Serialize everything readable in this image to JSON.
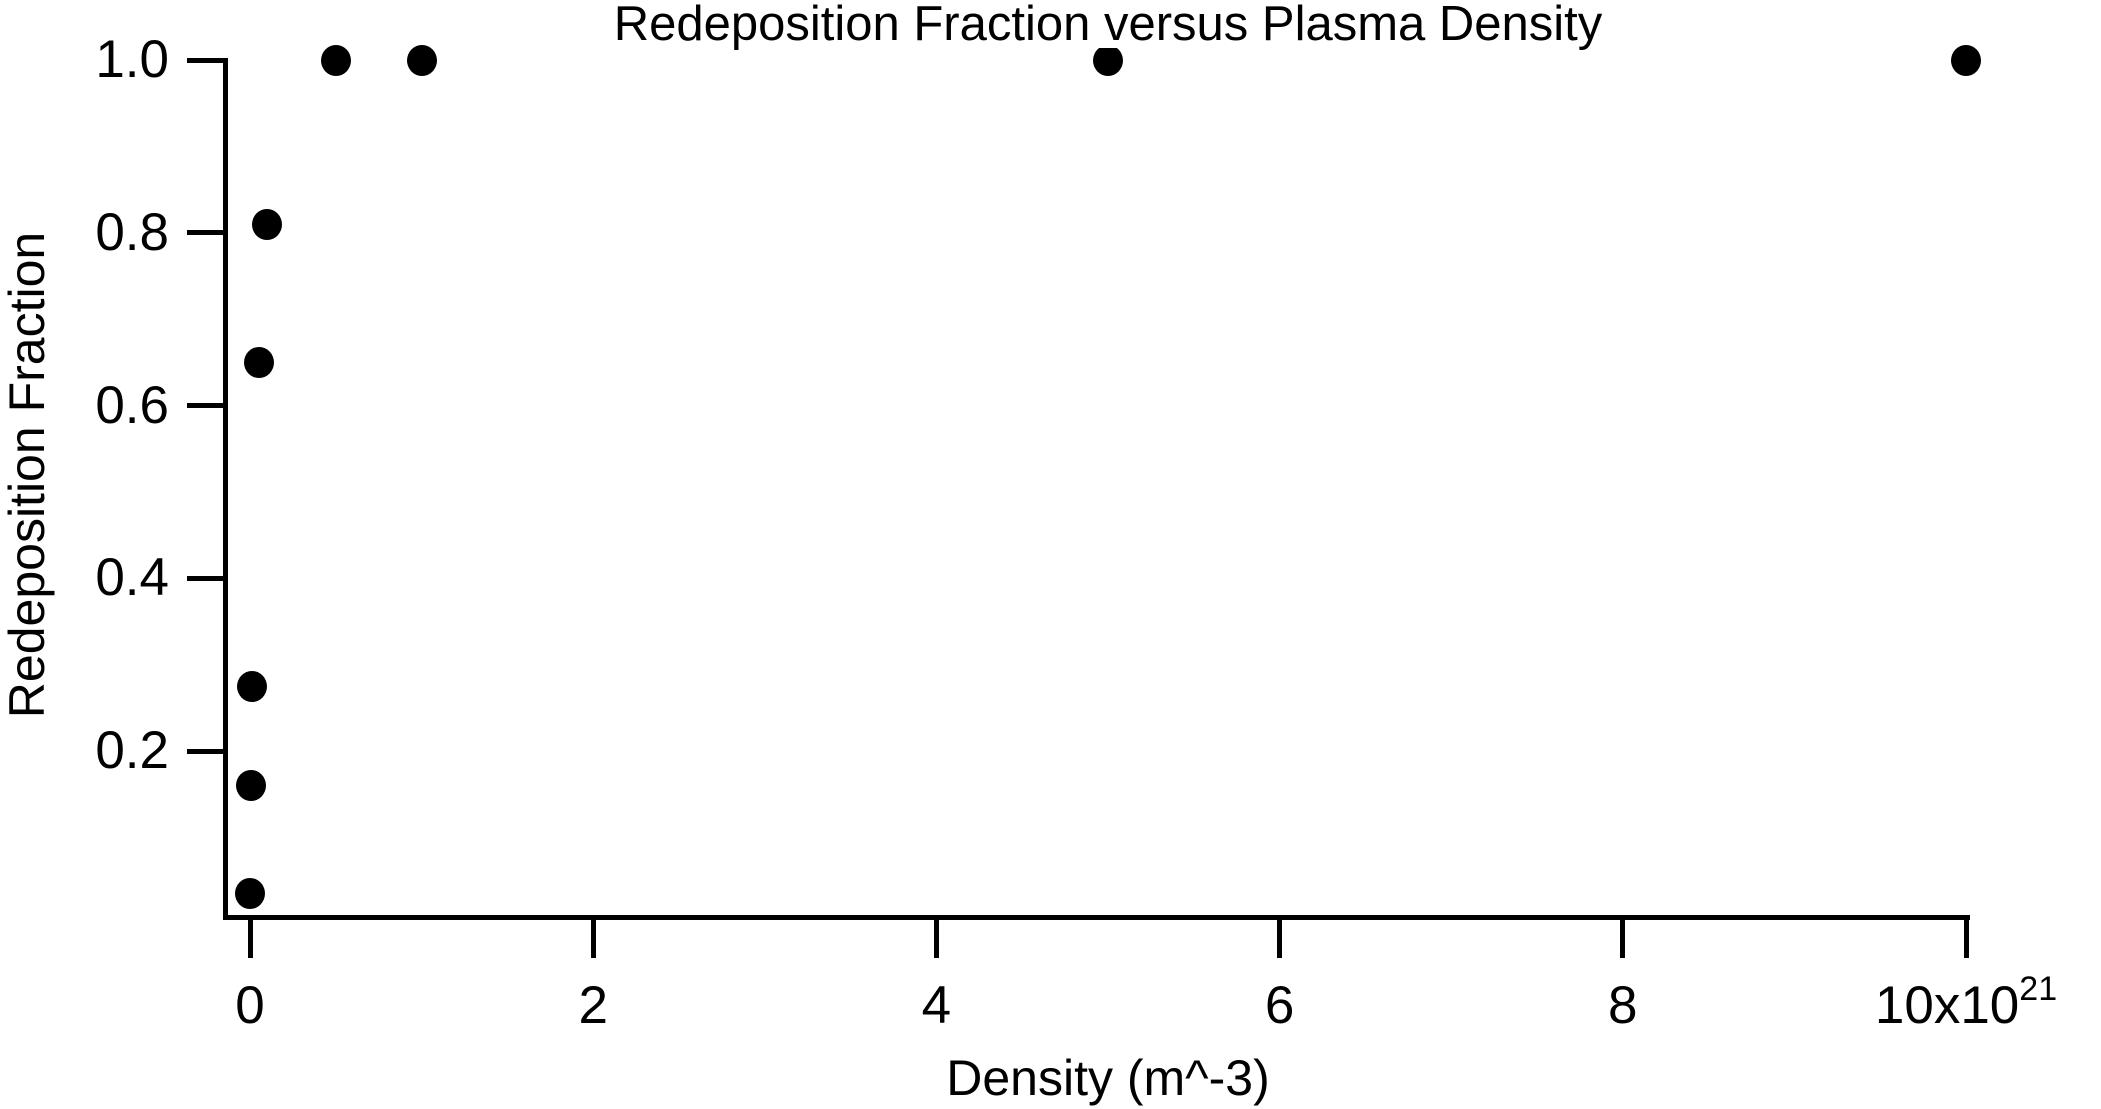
{
  "title": "Redeposition Fraction versus Plasma Density",
  "colors": {
    "background": "#ffffff",
    "axis": "#000000",
    "text": "#000000",
    "marker": "#000000"
  },
  "x_axis": {
    "label": "Density (m^-3)",
    "ticks": [
      {
        "value": 0,
        "label": "0"
      },
      {
        "value": 2,
        "label": "2"
      },
      {
        "value": 4,
        "label": "4"
      },
      {
        "value": 6,
        "label": "6"
      },
      {
        "value": 8,
        "label": "8"
      },
      {
        "value": 10,
        "label": "10x10",
        "sup": "21"
      }
    ]
  },
  "y_axis": {
    "label": "Redeposition Fraction",
    "ticks": [
      {
        "value": 1.0,
        "label": "1.0"
      },
      {
        "value": 0.8,
        "label": "0.8"
      },
      {
        "value": 0.6,
        "label": "0.6"
      },
      {
        "value": 0.4,
        "label": "0.4"
      },
      {
        "value": 0.2,
        "label": "0.2"
      }
    ]
  },
  "chart_data": {
    "type": "scatter",
    "title": "Redeposition Fraction versus Plasma Density",
    "xlabel": "Density (m^-3)",
    "ylabel": "Redeposition Fraction",
    "x_units": "10^21 m^-3",
    "xlim": [
      0,
      10
    ],
    "ylim": [
      0,
      1.0
    ],
    "x_tick_values": [
      0,
      2,
      4,
      6,
      8,
      10
    ],
    "y_tick_values": [
      0.2,
      0.4,
      0.6,
      0.8,
      1.0
    ],
    "grid": false,
    "legend": false,
    "marker": "filled-circle",
    "marker_color": "#000000",
    "points": [
      {
        "x": 0.001,
        "y": 0.035
      },
      {
        "x": 0.005,
        "y": 0.16
      },
      {
        "x": 0.01,
        "y": 0.275
      },
      {
        "x": 0.05,
        "y": 0.65
      },
      {
        "x": 0.1,
        "y": 0.81
      },
      {
        "x": 0.5,
        "y": 1.0
      },
      {
        "x": 1.0,
        "y": 1.0
      },
      {
        "x": 5.0,
        "y": 1.0
      },
      {
        "x": 10.0,
        "y": 1.0
      }
    ]
  }
}
